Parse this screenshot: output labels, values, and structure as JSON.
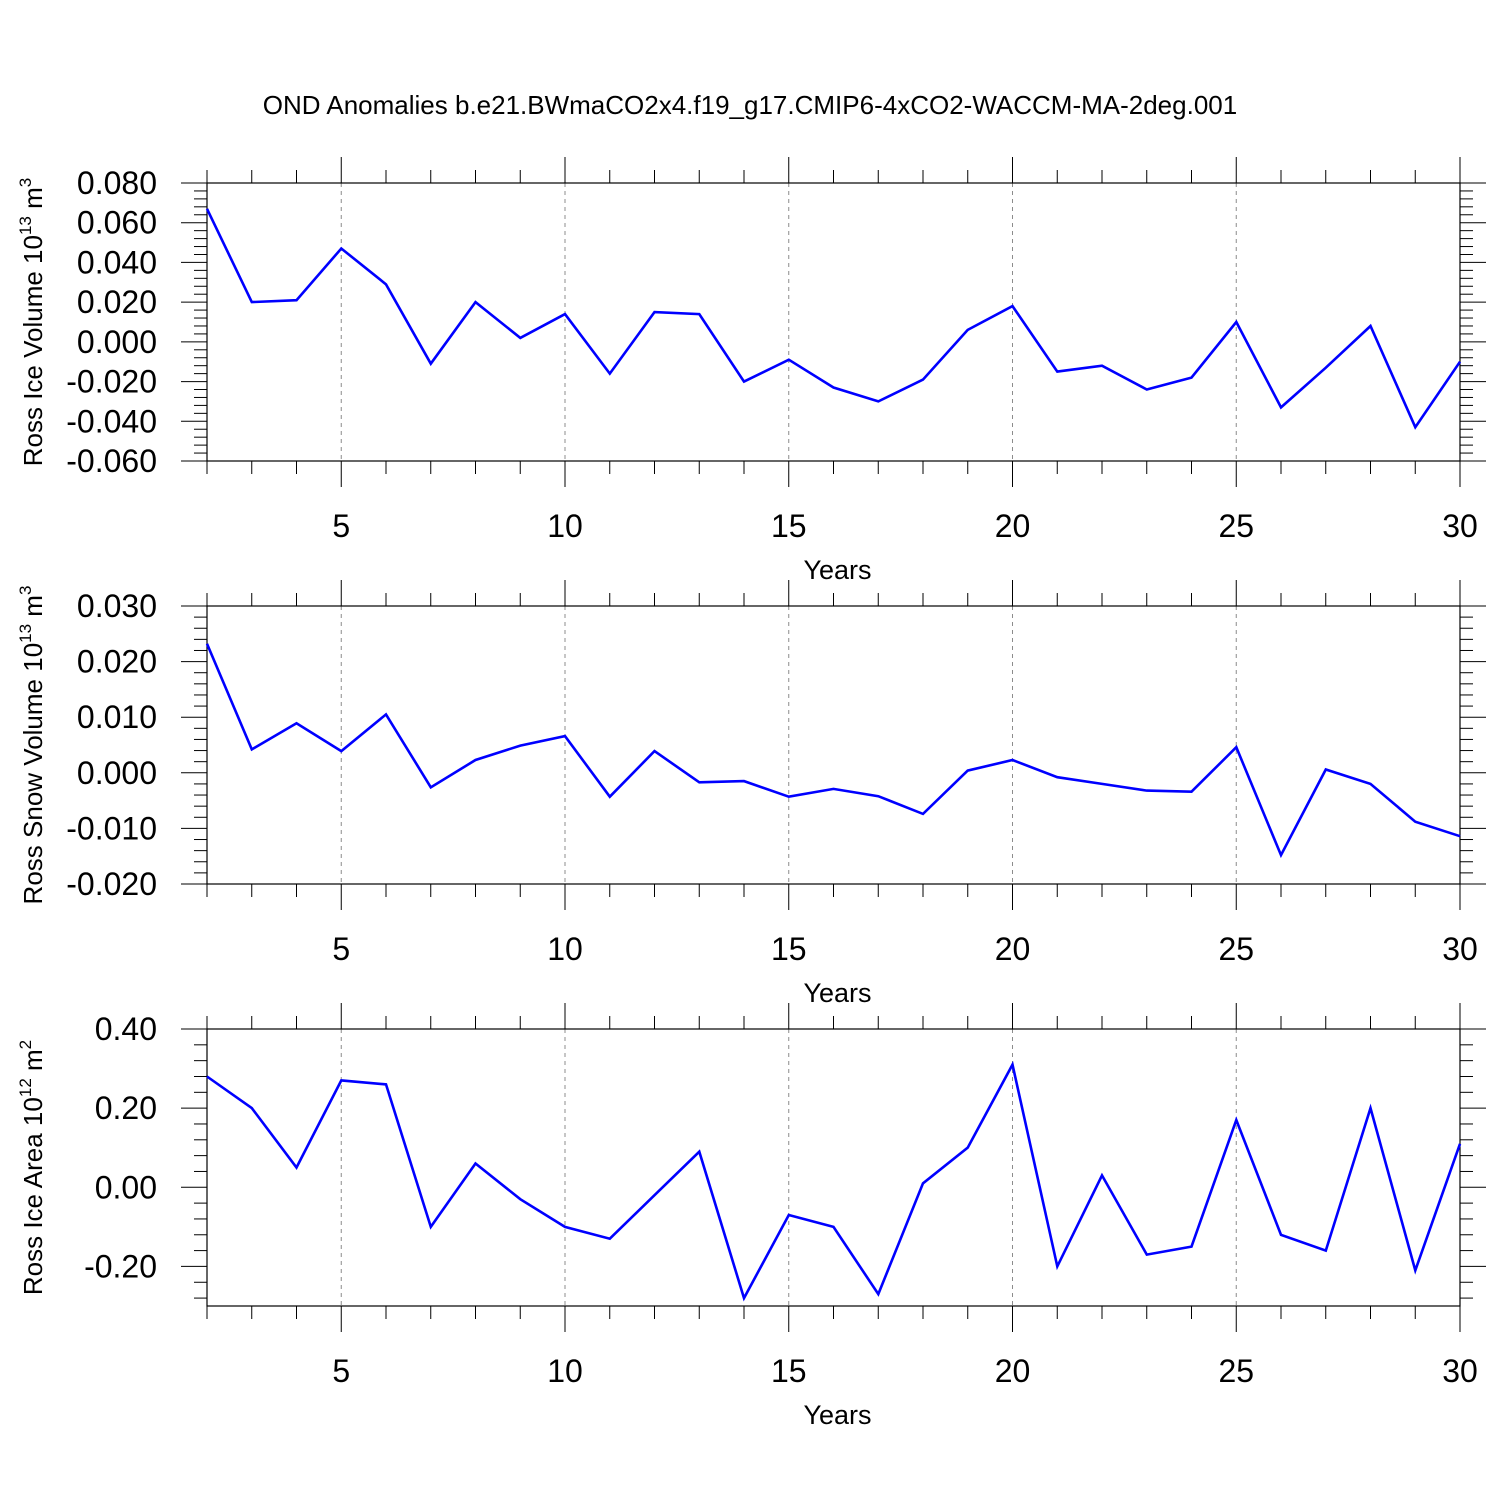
{
  "title": "OND Anomalies b.e21.BWmaCO2x4.f19_g17.CMIP6-4xCO2-WACCM-MA-2deg.001",
  "colors": {
    "line": "#0000ff",
    "axis": "#000000",
    "grid": "#8c8c8c"
  },
  "chart_data": [
    {
      "type": "line",
      "title": "",
      "xlabel": "Years",
      "ylabel": "Ross Ice Volume 10",
      "ylabel_sup": "13",
      "ylabel_unit": "m",
      "ylabel_unit_sup": "3",
      "xlim": [
        2,
        30
      ],
      "ylim": [
        -0.06,
        0.08
      ],
      "xticks": [
        5,
        10,
        15,
        20,
        25,
        30
      ],
      "yticks": [
        -0.06,
        -0.04,
        -0.02,
        0.0,
        0.02,
        0.04,
        0.06,
        0.08
      ],
      "ytick_labels": [
        "-0.060",
        "-0.040",
        "-0.020",
        "0.000",
        "0.020",
        "0.040",
        "0.060",
        "0.080"
      ],
      "x_minor_step": 1,
      "y_minor_step": 0.004,
      "grid": "vertical dashed at major x ticks",
      "series": [
        {
          "x": [
            2,
            3,
            4,
            5,
            6,
            7,
            8,
            9,
            10,
            11,
            12,
            13,
            14,
            15,
            16,
            17,
            18,
            19,
            20,
            21,
            22,
            23,
            24,
            25,
            26,
            27,
            28,
            29,
            30
          ],
          "values": [
            0.067,
            0.02,
            0.021,
            0.047,
            0.029,
            -0.011,
            0.02,
            0.002,
            0.014,
            -0.016,
            0.015,
            0.014,
            -0.02,
            -0.009,
            -0.023,
            -0.03,
            -0.019,
            0.006,
            0.018,
            -0.015,
            -0.012,
            -0.024,
            -0.018,
            0.01,
            -0.033,
            -0.013,
            0.008,
            -0.043,
            -0.01
          ]
        }
      ]
    },
    {
      "type": "line",
      "title": "",
      "xlabel": "Years",
      "ylabel": "Ross Snow Volume 10",
      "ylabel_sup": "13",
      "ylabel_unit": "m",
      "ylabel_unit_sup": "3",
      "xlim": [
        2,
        30
      ],
      "ylim": [
        -0.02,
        0.03
      ],
      "xticks": [
        5,
        10,
        15,
        20,
        25,
        30
      ],
      "yticks": [
        -0.02,
        -0.01,
        0.0,
        0.01,
        0.02,
        0.03
      ],
      "ytick_labels": [
        "-0.020",
        "-0.010",
        "0.000",
        "0.010",
        "0.020",
        "0.030"
      ],
      "x_minor_step": 1,
      "y_minor_step": 0.002,
      "grid": "vertical dashed at major x ticks",
      "series": [
        {
          "x": [
            2,
            3,
            4,
            5,
            6,
            7,
            8,
            9,
            10,
            11,
            12,
            13,
            14,
            15,
            16,
            17,
            18,
            19,
            20,
            21,
            22,
            23,
            24,
            25,
            26,
            27,
            28,
            29,
            30
          ],
          "values": [
            0.0232,
            0.0042,
            0.0089,
            0.0039,
            0.0105,
            -0.0026,
            0.0023,
            0.0049,
            0.0066,
            -0.0043,
            0.0039,
            -0.0017,
            -0.0015,
            -0.0043,
            -0.0029,
            -0.0042,
            -0.0074,
            0.0004,
            0.0023,
            -0.0008,
            -0.002,
            -0.0032,
            -0.0034,
            0.0046,
            -0.0148,
            0.0006,
            -0.002,
            -0.0088,
            -0.0114
          ]
        }
      ]
    },
    {
      "type": "line",
      "title": "",
      "xlabel": "Years",
      "ylabel": "Ross Ice Area 10",
      "ylabel_sup": "12",
      "ylabel_unit": "m",
      "ylabel_unit_sup": "2",
      "xlim": [
        2,
        30
      ],
      "ylim": [
        -0.3,
        0.4
      ],
      "xticks": [
        5,
        10,
        15,
        20,
        25,
        30
      ],
      "yticks": [
        -0.2,
        0.0,
        0.2,
        0.4
      ],
      "ytick_labels": [
        "-0.20",
        "0.00",
        "0.20",
        "0.40"
      ],
      "x_minor_step": 1,
      "y_minor_step": 0.04,
      "grid": "vertical dashed at major x ticks",
      "series": [
        {
          "x": [
            2,
            3,
            4,
            5,
            6,
            7,
            8,
            9,
            10,
            11,
            12,
            13,
            14,
            15,
            16,
            17,
            18,
            19,
            20,
            21,
            22,
            23,
            24,
            25,
            26,
            27,
            28,
            29,
            30
          ],
          "values": [
            0.28,
            0.2,
            0.05,
            0.27,
            0.26,
            -0.1,
            0.06,
            -0.03,
            -0.1,
            -0.13,
            -0.02,
            0.09,
            -0.28,
            -0.07,
            -0.1,
            -0.27,
            0.01,
            0.1,
            0.31,
            -0.2,
            0.03,
            -0.17,
            -0.15,
            0.17,
            -0.12,
            -0.16,
            0.2,
            -0.21,
            0.11
          ]
        }
      ]
    }
  ]
}
